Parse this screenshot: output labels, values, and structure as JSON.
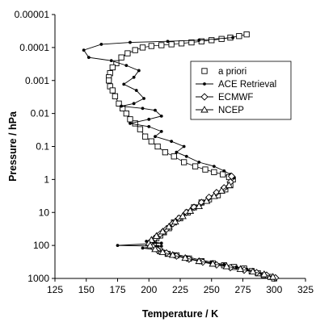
{
  "chart_data": {
    "type": "line",
    "xlabel": "Temperature / K",
    "ylabel": "Pressure / hPa",
    "xlim": [
      125,
      325
    ],
    "ylim": [
      1000,
      1e-05
    ],
    "y_scale": "log",
    "x_ticks": [
      125,
      150,
      175,
      200,
      225,
      250,
      275,
      300,
      325
    ],
    "y_ticks": [
      1000,
      100,
      10,
      1,
      0.1,
      0.01,
      0.001,
      0.0001,
      1e-05
    ],
    "y_tick_labels": [
      "1000",
      "100",
      "10",
      "1",
      "0.1",
      "0.01",
      "0.001",
      "0.0001",
      "0.00001"
    ],
    "grid": false,
    "legend_position": "right",
    "series": [
      {
        "name": "a priori",
        "marker": "square",
        "points": [
          [
            278,
            4e-05
          ],
          [
            272,
            4.5e-05
          ],
          [
            265,
            5e-05
          ],
          [
            258,
            5.5e-05
          ],
          [
            250,
            6e-05
          ],
          [
            242,
            6.5e-05
          ],
          [
            234,
            7e-05
          ],
          [
            226,
            7.5e-05
          ],
          [
            218,
            8e-05
          ],
          [
            210,
            8.5e-05
          ],
          [
            202,
            9e-05
          ],
          [
            195,
            0.0001
          ],
          [
            189,
            0.00012
          ],
          [
            183,
            0.00015
          ],
          [
            178,
            0.0002
          ],
          [
            174,
            0.0003
          ],
          [
            171,
            0.0004
          ],
          [
            169,
            0.0006
          ],
          [
            168,
            0.0008
          ],
          [
            168,
            0.001
          ],
          [
            169,
            0.0015
          ],
          [
            171,
            0.002
          ],
          [
            173,
            0.003
          ],
          [
            176,
            0.005
          ],
          [
            179,
            0.007
          ],
          [
            182,
            0.01
          ],
          [
            185,
            0.015
          ],
          [
            189,
            0.02
          ],
          [
            193,
            0.03
          ],
          [
            197,
            0.05
          ],
          [
            202,
            0.07
          ],
          [
            207,
            0.1
          ],
          [
            213,
            0.15
          ],
          [
            220,
            0.2
          ],
          [
            228,
            0.3
          ],
          [
            237,
            0.4
          ],
          [
            245,
            0.5
          ],
          [
            252,
            0.6
          ],
          [
            259,
            0.7
          ],
          [
            264,
            0.85
          ],
          [
            267,
            1
          ],
          [
            265,
            1.5
          ],
          [
            261,
            2
          ],
          [
            255,
            3
          ],
          [
            248,
            4
          ],
          [
            242,
            5
          ],
          [
            236,
            7
          ],
          [
            231,
            10
          ],
          [
            225,
            15
          ],
          [
            220,
            20
          ],
          [
            216,
            30
          ],
          [
            212,
            40
          ],
          [
            209,
            50
          ],
          [
            206,
            60
          ],
          [
            204,
            70
          ],
          [
            203,
            80
          ],
          [
            204,
            100
          ],
          [
            206,
            120
          ],
          [
            209,
            150
          ],
          [
            215,
            180
          ],
          [
            222,
            200
          ],
          [
            232,
            250
          ],
          [
            242,
            300
          ],
          [
            251,
            350
          ],
          [
            260,
            400
          ],
          [
            268,
            450
          ],
          [
            276,
            500
          ],
          [
            282,
            600
          ],
          [
            287,
            700
          ],
          [
            292,
            800
          ],
          [
            297,
            900
          ],
          [
            300,
            1000
          ]
        ]
      },
      {
        "name": "ACE Retrieval",
        "marker": "dot",
        "points": [
          [
            267,
            5e-05
          ],
          [
            240,
            6e-05
          ],
          [
            215,
            6.5e-05
          ],
          [
            185,
            7e-05
          ],
          [
            162,
            8e-05
          ],
          [
            148,
            0.00012
          ],
          [
            152,
            0.0002
          ],
          [
            170,
            0.00025
          ],
          [
            182,
            0.00035
          ],
          [
            192,
            0.0005
          ],
          [
            188,
            0.0008
          ],
          [
            180,
            0.0013
          ],
          [
            190,
            0.002
          ],
          [
            196,
            0.0035
          ],
          [
            188,
            0.005
          ],
          [
            178,
            0.006
          ],
          [
            195,
            0.007
          ],
          [
            205,
            0.008
          ],
          [
            210,
            0.012
          ],
          [
            200,
            0.015
          ],
          [
            185,
            0.02
          ],
          [
            200,
            0.025
          ],
          [
            210,
            0.035
          ],
          [
            205,
            0.05
          ],
          [
            218,
            0.07
          ],
          [
            228,
            0.1
          ],
          [
            222,
            0.15
          ],
          [
            230,
            0.2
          ],
          [
            240,
            0.3
          ],
          [
            252,
            0.4
          ],
          [
            260,
            0.55
          ],
          [
            265,
            0.7
          ],
          [
            268,
            0.9
          ],
          [
            266,
            1.2
          ],
          [
            262,
            1.8
          ],
          [
            256,
            2.5
          ],
          [
            250,
            3.5
          ],
          [
            244,
            5
          ],
          [
            238,
            7
          ],
          [
            232,
            10
          ],
          [
            226,
            15
          ],
          [
            220,
            22
          ],
          [
            215,
            32
          ],
          [
            210,
            45
          ],
          [
            205,
            60
          ],
          [
            198,
            75
          ],
          [
            210,
            85
          ],
          [
            175,
            100
          ],
          [
            210,
            105
          ],
          [
            195,
            120
          ],
          [
            212,
            150
          ],
          [
            220,
            180
          ],
          [
            230,
            220
          ],
          [
            240,
            270
          ],
          [
            250,
            320
          ],
          [
            260,
            380
          ],
          [
            270,
            450
          ],
          [
            278,
            520
          ],
          [
            285,
            620
          ],
          [
            292,
            750
          ],
          [
            298,
            900
          ]
        ]
      },
      {
        "name": "ECMWF",
        "marker": "diamond",
        "points": [
          [
            266,
            0.8
          ],
          [
            265,
            1.2
          ],
          [
            260,
            1.8
          ],
          [
            254,
            2.5
          ],
          [
            248,
            3.5
          ],
          [
            242,
            5
          ],
          [
            236,
            7
          ],
          [
            230,
            10
          ],
          [
            224,
            15
          ],
          [
            219,
            22
          ],
          [
            214,
            32
          ],
          [
            209,
            45
          ],
          [
            205,
            60
          ],
          [
            202,
            75
          ],
          [
            201,
            90
          ],
          [
            203,
            110
          ],
          [
            207,
            140
          ],
          [
            214,
            170
          ],
          [
            222,
            210
          ],
          [
            232,
            260
          ],
          [
            243,
            320
          ],
          [
            254,
            390
          ],
          [
            265,
            470
          ],
          [
            276,
            560
          ],
          [
            286,
            670
          ],
          [
            294,
            800
          ],
          [
            301,
            960
          ]
        ]
      },
      {
        "name": "NCEP",
        "marker": "triangle",
        "points": [
          [
            264,
            1.5
          ],
          [
            258,
            2.2
          ],
          [
            252,
            3.2
          ],
          [
            246,
            4.5
          ],
          [
            240,
            6.5
          ],
          [
            233,
            9
          ],
          [
            227,
            13
          ],
          [
            221,
            19
          ],
          [
            216,
            27
          ],
          [
            211,
            38
          ],
          [
            206,
            52
          ],
          [
            202,
            68
          ],
          [
            200,
            85
          ],
          [
            201,
            100
          ],
          [
            205,
            130
          ],
          [
            211,
            160
          ],
          [
            219,
            195
          ],
          [
            229,
            240
          ],
          [
            240,
            300
          ],
          [
            251,
            360
          ],
          [
            262,
            430
          ],
          [
            273,
            520
          ],
          [
            283,
            620
          ],
          [
            292,
            750
          ],
          [
            299,
            900
          ]
        ]
      }
    ]
  }
}
